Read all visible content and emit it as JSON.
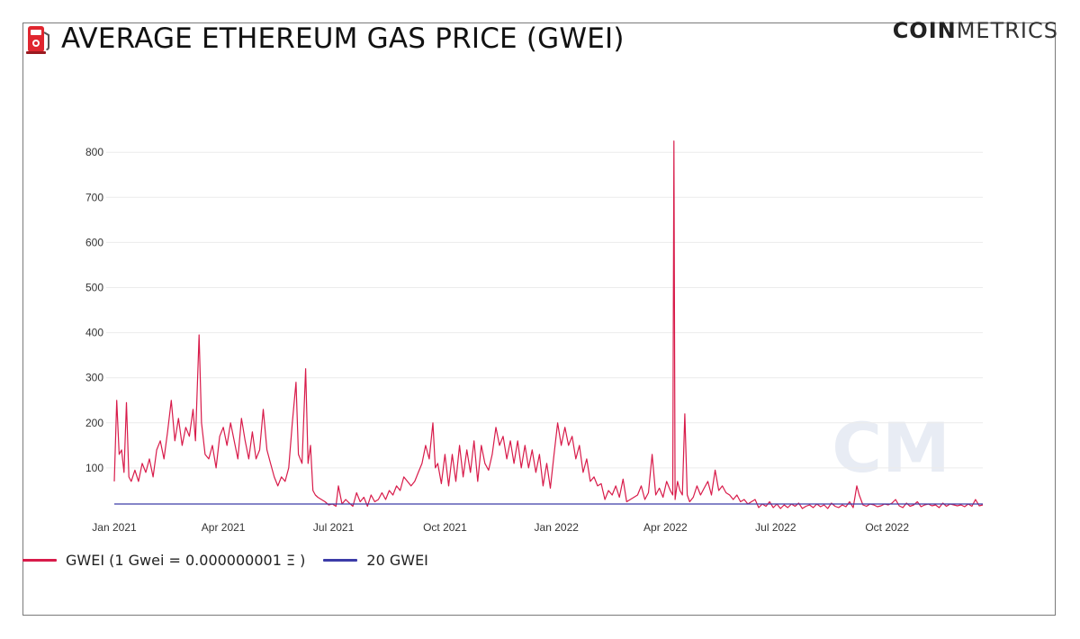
{
  "header": {
    "title": "AVERAGE ETHEREUM GAS PRICE (GWEI)",
    "icon": "fuel-pump-icon",
    "brand_bold": "COIN",
    "brand_light": "METRICS",
    "watermark": "CM"
  },
  "colors": {
    "gwei_line": "#d81b4a",
    "threshold_line": "#3c3ca8",
    "grid": "#ececec",
    "pump_red": "#e0262f",
    "watermark": "#e8ecf4"
  },
  "legend": {
    "gwei_label": "GWEI  (1 Gwei = 0.000000001 Ξ )",
    "threshold_label": "20 GWEI"
  },
  "chart_data": {
    "type": "line",
    "title": "AVERAGE ETHEREUM GAS PRICE (GWEI)",
    "xlabel": "",
    "ylabel": "",
    "x_range_days": [
      0,
      717
    ],
    "ylim": [
      0,
      820
    ],
    "yticks": [
      100,
      200,
      300,
      400,
      500,
      600,
      700,
      800
    ],
    "xticks": [
      {
        "label": "Jan 2021",
        "day": 0
      },
      {
        "label": "Apr 2021",
        "day": 90
      },
      {
        "label": "Jul 2021",
        "day": 181
      },
      {
        "label": "Oct 2021",
        "day": 273
      },
      {
        "label": "Jan 2022",
        "day": 365
      },
      {
        "label": "Apr 2022",
        "day": 455
      },
      {
        "label": "Jul 2022",
        "day": 546
      },
      {
        "label": "Oct 2022",
        "day": 638
      }
    ],
    "grid": true,
    "legend_position": "bottom-left",
    "series": [
      {
        "name": "GWEI  (1 Gwei = 0.000000001 Ξ )",
        "x_unit": "days since Jan 1 2021",
        "points": [
          [
            0,
            70
          ],
          [
            2,
            250
          ],
          [
            4,
            130
          ],
          [
            6,
            140
          ],
          [
            8,
            90
          ],
          [
            10,
            245
          ],
          [
            12,
            80
          ],
          [
            14,
            70
          ],
          [
            17,
            95
          ],
          [
            20,
            70
          ],
          [
            23,
            110
          ],
          [
            26,
            90
          ],
          [
            29,
            120
          ],
          [
            32,
            80
          ],
          [
            35,
            140
          ],
          [
            38,
            160
          ],
          [
            41,
            120
          ],
          [
            44,
            180
          ],
          [
            47,
            250
          ],
          [
            50,
            160
          ],
          [
            53,
            210
          ],
          [
            56,
            150
          ],
          [
            59,
            190
          ],
          [
            62,
            170
          ],
          [
            65,
            230
          ],
          [
            67,
            160
          ],
          [
            70,
            395
          ],
          [
            72,
            200
          ],
          [
            75,
            130
          ],
          [
            78,
            120
          ],
          [
            81,
            150
          ],
          [
            84,
            100
          ],
          [
            87,
            170
          ],
          [
            90,
            190
          ],
          [
            93,
            150
          ],
          [
            96,
            200
          ],
          [
            99,
            160
          ],
          [
            102,
            120
          ],
          [
            105,
            210
          ],
          [
            108,
            160
          ],
          [
            111,
            120
          ],
          [
            114,
            180
          ],
          [
            117,
            120
          ],
          [
            120,
            140
          ],
          [
            123,
            230
          ],
          [
            126,
            140
          ],
          [
            129,
            110
          ],
          [
            132,
            80
          ],
          [
            135,
            60
          ],
          [
            138,
            80
          ],
          [
            141,
            70
          ],
          [
            144,
            100
          ],
          [
            147,
            200
          ],
          [
            150,
            290
          ],
          [
            152,
            130
          ],
          [
            155,
            110
          ],
          [
            158,
            320
          ],
          [
            160,
            110
          ],
          [
            162,
            150
          ],
          [
            164,
            50
          ],
          [
            166,
            40
          ],
          [
            168,
            35
          ],
          [
            171,
            30
          ],
          [
            174,
            25
          ],
          [
            177,
            18
          ],
          [
            180,
            20
          ],
          [
            183,
            15
          ],
          [
            185,
            60
          ],
          [
            188,
            20
          ],
          [
            191,
            30
          ],
          [
            194,
            22
          ],
          [
            197,
            15
          ],
          [
            200,
            45
          ],
          [
            203,
            25
          ],
          [
            206,
            35
          ],
          [
            209,
            15
          ],
          [
            212,
            40
          ],
          [
            215,
            25
          ],
          [
            218,
            30
          ],
          [
            221,
            45
          ],
          [
            224,
            30
          ],
          [
            227,
            50
          ],
          [
            230,
            40
          ],
          [
            233,
            60
          ],
          [
            236,
            50
          ],
          [
            239,
            80
          ],
          [
            242,
            70
          ],
          [
            245,
            60
          ],
          [
            248,
            70
          ],
          [
            251,
            90
          ],
          [
            254,
            110
          ],
          [
            257,
            150
          ],
          [
            260,
            120
          ],
          [
            263,
            200
          ],
          [
            265,
            100
          ],
          [
            267,
            110
          ],
          [
            270,
            65
          ],
          [
            273,
            130
          ],
          [
            276,
            60
          ],
          [
            279,
            130
          ],
          [
            282,
            70
          ],
          [
            285,
            150
          ],
          [
            288,
            80
          ],
          [
            291,
            140
          ],
          [
            294,
            90
          ],
          [
            297,
            160
          ],
          [
            300,
            70
          ],
          [
            303,
            150
          ],
          [
            306,
            110
          ],
          [
            309,
            95
          ],
          [
            312,
            130
          ],
          [
            315,
            190
          ],
          [
            318,
            150
          ],
          [
            321,
            170
          ],
          [
            324,
            120
          ],
          [
            327,
            160
          ],
          [
            330,
            110
          ],
          [
            333,
            160
          ],
          [
            336,
            100
          ],
          [
            339,
            150
          ],
          [
            342,
            100
          ],
          [
            345,
            140
          ],
          [
            348,
            90
          ],
          [
            351,
            130
          ],
          [
            354,
            60
          ],
          [
            357,
            110
          ],
          [
            360,
            55
          ],
          [
            363,
            130
          ],
          [
            366,
            200
          ],
          [
            369,
            150
          ],
          [
            372,
            190
          ],
          [
            375,
            150
          ],
          [
            378,
            170
          ],
          [
            381,
            120
          ],
          [
            384,
            150
          ],
          [
            387,
            90
          ],
          [
            390,
            120
          ],
          [
            393,
            70
          ],
          [
            396,
            80
          ],
          [
            399,
            60
          ],
          [
            402,
            65
          ],
          [
            405,
            30
          ],
          [
            408,
            50
          ],
          [
            411,
            40
          ],
          [
            414,
            60
          ],
          [
            417,
            35
          ],
          [
            420,
            75
          ],
          [
            423,
            25
          ],
          [
            426,
            30
          ],
          [
            429,
            35
          ],
          [
            432,
            40
          ],
          [
            435,
            60
          ],
          [
            438,
            30
          ],
          [
            441,
            45
          ],
          [
            444,
            130
          ],
          [
            447,
            40
          ],
          [
            450,
            55
          ],
          [
            453,
            35
          ],
          [
            456,
            70
          ],
          [
            459,
            50
          ],
          [
            461,
            40
          ],
          [
            462,
            825
          ],
          [
            463,
            30
          ],
          [
            465,
            70
          ],
          [
            467,
            50
          ],
          [
            469,
            40
          ],
          [
            471,
            220
          ],
          [
            473,
            40
          ],
          [
            475,
            25
          ],
          [
            478,
            35
          ],
          [
            481,
            60
          ],
          [
            484,
            40
          ],
          [
            487,
            55
          ],
          [
            490,
            70
          ],
          [
            493,
            40
          ],
          [
            496,
            95
          ],
          [
            499,
            50
          ],
          [
            502,
            60
          ],
          [
            505,
            45
          ],
          [
            508,
            40
          ],
          [
            511,
            30
          ],
          [
            514,
            40
          ],
          [
            517,
            25
          ],
          [
            520,
            30
          ],
          [
            523,
            20
          ],
          [
            526,
            25
          ],
          [
            529,
            30
          ],
          [
            532,
            12
          ],
          [
            535,
            20
          ],
          [
            538,
            15
          ],
          [
            541,
            25
          ],
          [
            544,
            12
          ],
          [
            547,
            20
          ],
          [
            550,
            10
          ],
          [
            553,
            18
          ],
          [
            556,
            12
          ],
          [
            559,
            20
          ],
          [
            562,
            15
          ],
          [
            565,
            22
          ],
          [
            568,
            10
          ],
          [
            571,
            15
          ],
          [
            574,
            18
          ],
          [
            577,
            12
          ],
          [
            580,
            20
          ],
          [
            583,
            14
          ],
          [
            586,
            18
          ],
          [
            589,
            10
          ],
          [
            592,
            22
          ],
          [
            595,
            15
          ],
          [
            598,
            12
          ],
          [
            601,
            18
          ],
          [
            604,
            14
          ],
          [
            607,
            25
          ],
          [
            610,
            12
          ],
          [
            613,
            60
          ],
          [
            615,
            40
          ],
          [
            618,
            18
          ],
          [
            621,
            15
          ],
          [
            624,
            20
          ],
          [
            627,
            18
          ],
          [
            630,
            14
          ],
          [
            633,
            16
          ],
          [
            636,
            20
          ],
          [
            639,
            18
          ],
          [
            642,
            22
          ],
          [
            645,
            30
          ],
          [
            648,
            16
          ],
          [
            651,
            12
          ],
          [
            654,
            22
          ],
          [
            657,
            15
          ],
          [
            660,
            18
          ],
          [
            663,
            25
          ],
          [
            666,
            14
          ],
          [
            669,
            18
          ],
          [
            672,
            20
          ],
          [
            675,
            16
          ],
          [
            678,
            18
          ],
          [
            681,
            12
          ],
          [
            684,
            22
          ],
          [
            687,
            15
          ],
          [
            690,
            20
          ],
          [
            693,
            18
          ],
          [
            696,
            16
          ],
          [
            699,
            18
          ],
          [
            702,
            14
          ],
          [
            705,
            20
          ],
          [
            708,
            15
          ],
          [
            711,
            30
          ],
          [
            714,
            16
          ],
          [
            717,
            18
          ]
        ]
      },
      {
        "name": "20 GWEI",
        "points": [
          [
            0,
            20
          ],
          [
            717,
            20
          ]
        ]
      }
    ]
  }
}
